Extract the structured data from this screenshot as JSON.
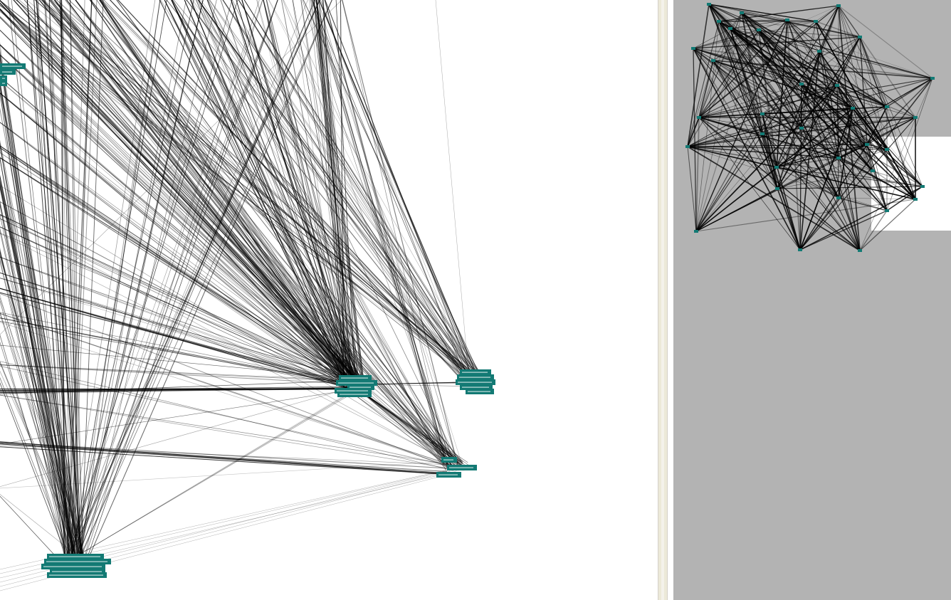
{
  "colors": {
    "node_fill": "#137a74",
    "node_text": "#ffffff",
    "edge": "#000000",
    "canvas_bg": "#ffffff",
    "overview_bg": "#b3b3b3",
    "splitter": "#ece9d8"
  },
  "clusters": [
    {
      "id": "cluster-top-left",
      "labels": [
        "",
        "",
        ""
      ]
    },
    {
      "id": "cluster-center",
      "labels": [
        "",
        "",
        "",
        "",
        ""
      ]
    },
    {
      "id": "cluster-right",
      "labels": [
        "",
        "",
        "",
        ""
      ]
    },
    {
      "id": "cluster-lower-right",
      "labels": [
        "",
        "",
        ""
      ]
    },
    {
      "id": "cluster-bottom-left",
      "labels": [
        "",
        "",
        "",
        "",
        "",
        ""
      ]
    }
  ]
}
